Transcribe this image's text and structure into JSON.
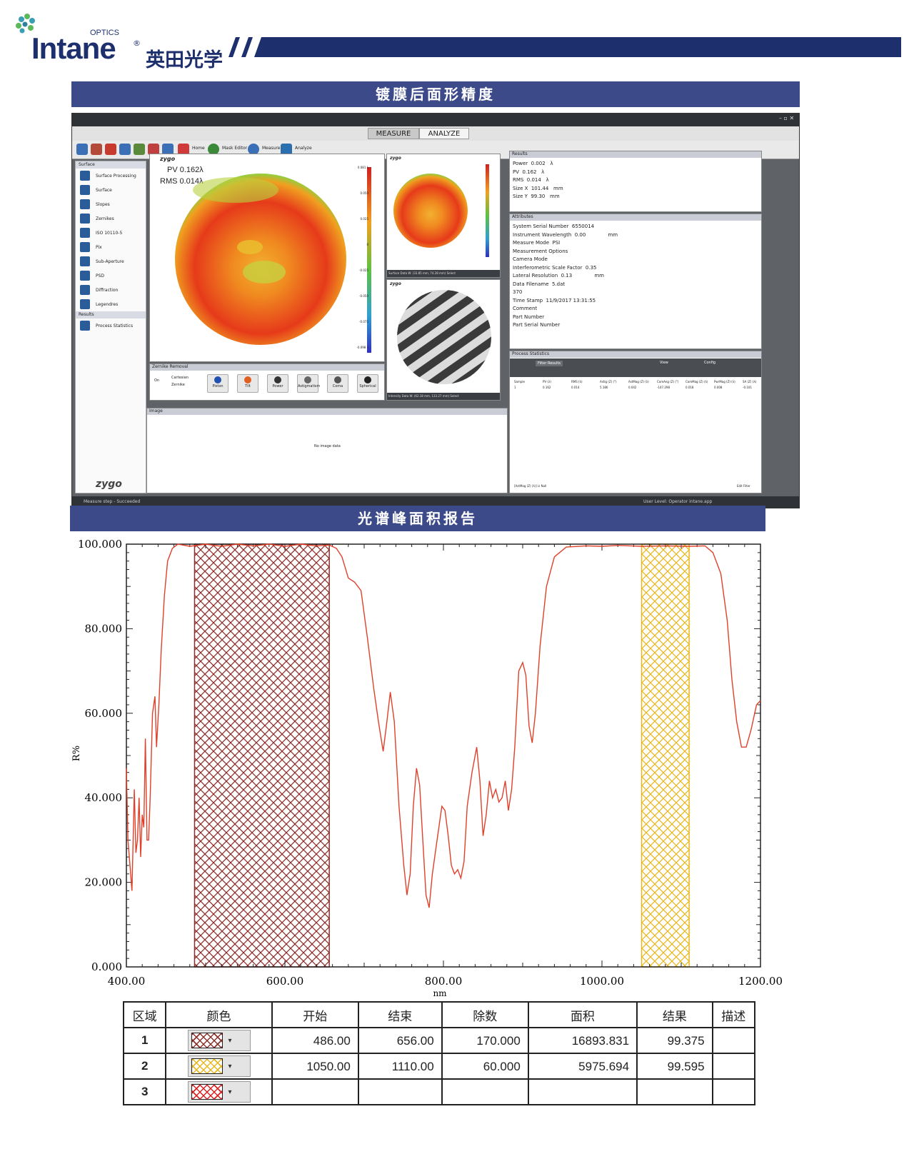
{
  "header": {
    "brand_optics": "OPTICS",
    "brand_name": "Intane",
    "brand_reg": "®",
    "brand_cn": "英田光学"
  },
  "section1": {
    "title": "镀膜后面形精度"
  },
  "app": {
    "tabs": [
      "MEASURE",
      "ANALYZE"
    ],
    "toolbar_labels": [
      "Home",
      "Mask Editor",
      "Measure",
      "Analyze"
    ],
    "left_nav": {
      "group1": "Surface",
      "items": [
        "Surface Processing",
        "Surface",
        "Slopes",
        "Zernikes",
        "ISO 10110-5",
        "Pix",
        "Sub-Aperture",
        "PSD",
        "Diffraction",
        "Legendres"
      ],
      "group2": "Results",
      "results_items": [
        "Process Statistics"
      ],
      "logo": "zygo"
    },
    "surface_map": {
      "logo": "zygo",
      "pv": "PV 0.162λ",
      "rms": "RMS 0.014λ",
      "scale": [
        "0.081 λ",
        "0.050",
        "0.025",
        "0",
        "-0.025",
        "-0.050",
        "-0.075",
        "-0.098 λ"
      ]
    },
    "surface_thumb": {
      "logo": "zygo",
      "caption": "Surface Data   W: (33.85 mm, 74.28 mm)   Select",
      "scale": [
        "0.081 λ",
        "0.05",
        "0",
        "-0.05",
        "-0.098 λ"
      ]
    },
    "intensity": {
      "logo": "zygo",
      "caption": "Intensity Data   W: (62.18 mm, 133.27 mm)   Select"
    },
    "zernike": {
      "title": "Zernike Removal",
      "options": [
        "On",
        "Cartesian",
        "Zernike"
      ],
      "buttons": [
        "Piston",
        "Tilt",
        "Power",
        "Astigmatism",
        "Coma",
        "Spherical"
      ]
    },
    "image_panel": {
      "title": "Image",
      "empty": "No image data"
    },
    "results": {
      "title": "Results",
      "lines": [
        "Power  0.002   λ",
        "PV  0.162   λ",
        "RMS  0.014   λ",
        "Size X  101.44   mm",
        "Size Y  99.30   mm"
      ]
    },
    "attributes": {
      "title": "Attributes",
      "lines": [
        "System Serial Number  6550014",
        "Instrument Wavelength  0.00              mm",
        "Measure Mode  PSI",
        "Measurement Options",
        "Camera Mode",
        "Interferometric Scale Factor  0.35",
        "Lateral Resolution  0.13              mm",
        "Data Filename  5.dat",
        "370",
        "Time Stamp  11/9/2017 13:31:55",
        "Comment",
        "Part Number",
        "Part Serial Number"
      ]
    },
    "process_stats": {
      "title": "Process Statistics",
      "filter": "Filter Results",
      "view": "View",
      "config": "Config",
      "columns": [
        "Sample",
        "PV (λ)",
        "RMS (λ)",
        "Astig (Z) (°)",
        "AstMag (Z) (λ)",
        "ComAng (Z) (°)",
        "ComMag (Z) (λ)",
        "PwrMag (Z) (λ)",
        "SA (Z) (λ)"
      ],
      "row": [
        "1",
        "0.162",
        "0.014",
        "5.186",
        "0.042",
        "-147.298",
        "0.018",
        "0.008",
        "-0.101"
      ],
      "footer": "[AstMag (Z) (λ)] is Null",
      "edit_filter": "Edit Filter"
    },
    "status": {
      "left": "Measure step - Succeeded",
      "right": "User Level: Operator   intane.app"
    }
  },
  "section2": {
    "title": "光谱峰面积报告"
  },
  "chart_data": {
    "type": "line",
    "xlabel": "nm",
    "ylabel": "R%",
    "xlim": [
      400,
      1200
    ],
    "ylim": [
      0,
      100
    ],
    "xticks": [
      "400.00",
      "600.00",
      "800.00",
      "1000.00",
      "1200.00"
    ],
    "yticks": [
      "0.000",
      "20.000",
      "40.000",
      "60.000",
      "80.000",
      "100.000"
    ],
    "grid": false,
    "series": [
      {
        "color": "#e0402a",
        "points": [
          [
            400,
            47
          ],
          [
            402,
            30
          ],
          [
            405,
            23
          ],
          [
            407,
            18
          ],
          [
            410,
            42
          ],
          [
            412,
            27
          ],
          [
            414,
            30
          ],
          [
            416,
            40
          ],
          [
            418,
            26
          ],
          [
            420,
            36
          ],
          [
            422,
            33
          ],
          [
            424,
            54
          ],
          [
            426,
            30
          ],
          [
            428,
            30
          ],
          [
            430,
            40
          ],
          [
            433,
            60
          ],
          [
            436,
            64
          ],
          [
            438,
            52
          ],
          [
            441,
            62
          ],
          [
            444,
            75
          ],
          [
            448,
            88
          ],
          [
            452,
            96
          ],
          [
            458,
            99
          ],
          [
            465,
            100
          ],
          [
            480,
            99.5
          ],
          [
            500,
            100
          ],
          [
            520,
            99.5
          ],
          [
            540,
            100
          ],
          [
            560,
            99.6
          ],
          [
            580,
            100
          ],
          [
            600,
            99.5
          ],
          [
            620,
            100
          ],
          [
            640,
            99.6
          ],
          [
            656,
            99.8
          ],
          [
            665,
            99
          ],
          [
            672,
            97
          ],
          [
            680,
            92
          ],
          [
            688,
            91
          ],
          [
            696,
            89
          ],
          [
            704,
            78
          ],
          [
            712,
            66
          ],
          [
            718,
            58
          ],
          [
            724,
            51
          ],
          [
            728,
            57
          ],
          [
            733,
            65
          ],
          [
            738,
            58
          ],
          [
            744,
            38
          ],
          [
            750,
            24
          ],
          [
            754,
            17
          ],
          [
            758,
            22
          ],
          [
            762,
            38
          ],
          [
            766,
            47
          ],
          [
            770,
            43
          ],
          [
            774,
            30
          ],
          [
            778,
            17
          ],
          [
            782,
            14
          ],
          [
            786,
            22
          ],
          [
            792,
            30
          ],
          [
            798,
            38
          ],
          [
            802,
            37
          ],
          [
            806,
            31
          ],
          [
            810,
            24
          ],
          [
            814,
            22
          ],
          [
            818,
            23
          ],
          [
            822,
            21
          ],
          [
            826,
            25
          ],
          [
            830,
            38
          ],
          [
            836,
            46
          ],
          [
            842,
            52
          ],
          [
            846,
            44
          ],
          [
            850,
            31
          ],
          [
            854,
            36
          ],
          [
            858,
            44
          ],
          [
            862,
            40
          ],
          [
            866,
            42
          ],
          [
            870,
            39
          ],
          [
            874,
            40
          ],
          [
            878,
            44
          ],
          [
            882,
            37
          ],
          [
            886,
            42
          ],
          [
            890,
            52
          ],
          [
            895,
            70
          ],
          [
            900,
            72
          ],
          [
            904,
            69
          ],
          [
            908,
            57
          ],
          [
            912,
            53
          ],
          [
            916,
            60
          ],
          [
            922,
            76
          ],
          [
            930,
            90
          ],
          [
            940,
            97
          ],
          [
            955,
            99.3
          ],
          [
            980,
            99.6
          ],
          [
            1000,
            99.5
          ],
          [
            1020,
            99.7
          ],
          [
            1050,
            99.5
          ],
          [
            1080,
            99.6
          ],
          [
            1110,
            99.5
          ],
          [
            1130,
            99.6
          ],
          [
            1140,
            98
          ],
          [
            1150,
            93
          ],
          [
            1158,
            82
          ],
          [
            1164,
            68
          ],
          [
            1170,
            58
          ],
          [
            1176,
            52
          ],
          [
            1182,
            52
          ],
          [
            1188,
            56
          ],
          [
            1195,
            62
          ],
          [
            1200,
            63
          ]
        ]
      }
    ],
    "regions": [
      {
        "start": 486,
        "end": 656,
        "color": "#8b2f2a"
      },
      {
        "start": 1050,
        "end": 1110,
        "color": "#e8b820"
      }
    ]
  },
  "table": {
    "headers": [
      "区域",
      "颜色",
      "开始",
      "结束",
      "除数",
      "面积",
      "结果",
      "描述"
    ],
    "rows": [
      {
        "id": "1",
        "color": "#8b2f2a",
        "start": "486.00",
        "end": "656.00",
        "divisor": "170.000",
        "area": "16893.831",
        "result": "99.375",
        "desc": ""
      },
      {
        "id": "2",
        "color": "#e8b820",
        "start": "1050.00",
        "end": "1110.00",
        "divisor": "60.000",
        "area": "5975.694",
        "result": "99.595",
        "desc": ""
      },
      {
        "id": "3",
        "color": "#e02020",
        "start": "",
        "end": "",
        "divisor": "",
        "area": "",
        "result": "",
        "desc": ""
      }
    ]
  }
}
